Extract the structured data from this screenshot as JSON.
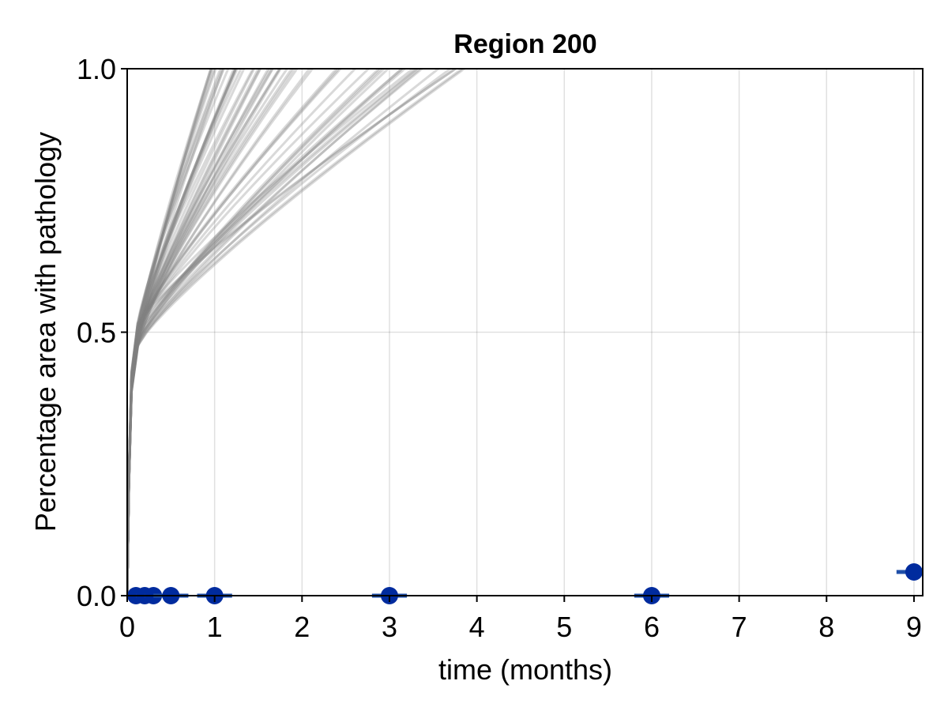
{
  "chart_data": {
    "type": "line",
    "title": "Region 200",
    "xlabel": "time (months)",
    "ylabel": "Percentage area with pathology",
    "xlim": [
      0,
      9.1
    ],
    "ylim": [
      0,
      1.0
    ],
    "xticks": [
      0,
      1,
      2,
      3,
      4,
      5,
      6,
      7,
      8,
      9
    ],
    "xtick_labels": [
      "0",
      "1",
      "2",
      "3",
      "4",
      "5",
      "6",
      "7",
      "8",
      "9"
    ],
    "yticks": [
      0,
      0.5,
      1.0
    ],
    "ytick_labels": [
      "0.0",
      "0.5",
      "1.0"
    ],
    "grid": true,
    "legend": "none",
    "colors": {
      "simulations": "#808080",
      "observed": "#002b9e",
      "errorbar": "#1f4fa8"
    },
    "simulations": {
      "count": 60,
      "t_knee": 0.12,
      "y_knee_range": [
        0.47,
        0.52
      ],
      "t_reach_max_range": [
        0.95,
        3.9
      ],
      "curve_exponent": 0.85
    },
    "observed": {
      "x": [
        0.1,
        0.2,
        0.3,
        0.5,
        1,
        3,
        6,
        9
      ],
      "y": [
        0.0,
        0.0,
        0.0,
        0.0,
        0.0,
        0.0,
        0.0,
        0.045
      ],
      "xerr": [
        0.1,
        0.1,
        0.1,
        0.2,
        0.2,
        0.2,
        0.2,
        0.2
      ]
    }
  }
}
